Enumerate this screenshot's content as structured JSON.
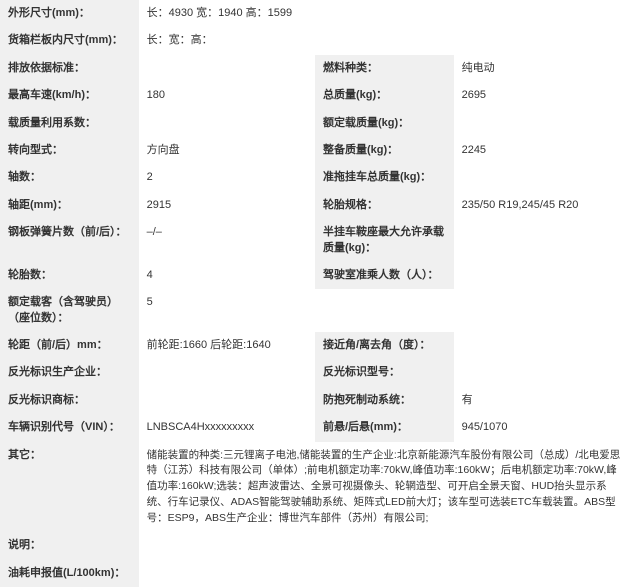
{
  "rows": [
    {
      "type": "full",
      "label": "外形尺寸(mm)：",
      "value": "长：4930 宽：1940 高：1599"
    },
    {
      "type": "full",
      "label": "货箱栏板内尺寸(mm)：",
      "value": "长：宽：高："
    },
    {
      "type": "pair",
      "l1": "排放依据标准：",
      "v1": "",
      "l2": "燃料种类：",
      "v2": "纯电动"
    },
    {
      "type": "pair",
      "l1": "最高车速(km/h)：",
      "v1": "180",
      "l2": "总质量(kg)：",
      "v2": "2695"
    },
    {
      "type": "pair",
      "l1": "载质量利用系数：",
      "v1": "",
      "l2": "额定载质量(kg)：",
      "v2": ""
    },
    {
      "type": "pair",
      "l1": "转向型式：",
      "v1": "方向盘",
      "l2": "整备质量(kg)：",
      "v2": "2245"
    },
    {
      "type": "pair",
      "l1": "轴数：",
      "v1": "2",
      "l2": "准拖挂车总质量(kg)：",
      "v2": ""
    },
    {
      "type": "pair",
      "l1": "轴距(mm)：",
      "v1": "2915",
      "l2": "轮胎规格：",
      "v2": "235/50 R19,245/45 R20"
    },
    {
      "type": "pair",
      "l1": "钢板弹簧片数（前/后）：",
      "v1": "–/–",
      "l2": "半挂车鞍座最大允许承载质量(kg)：",
      "v2": ""
    },
    {
      "type": "pair",
      "l1": "轮胎数：",
      "v1": "4",
      "l2": "驾驶室准乘人数（人）：",
      "v2": ""
    },
    {
      "type": "full",
      "label": "额定载客（含驾驶员）（座位数）：",
      "value": "5"
    },
    {
      "type": "pair",
      "l1": "轮距（前/后）mm：",
      "v1": "前轮距:1660 后轮距:1640",
      "l2": "接近角/离去角（度）：",
      "v2": ""
    },
    {
      "type": "pair",
      "l1": "反光标识生产企业：",
      "v1": "",
      "l2": "反光标识型号：",
      "v2": ""
    },
    {
      "type": "pair",
      "l1": "反光标识商标：",
      "v1": "",
      "l2": "防抱死制动系统：",
      "v2": "有"
    },
    {
      "type": "pair",
      "l1": "车辆识别代号（VIN）：",
      "v1": "LNBSCA4Hxxxxxxxxx",
      "l2": "前悬/后悬(mm)：",
      "v2": "945/1070"
    },
    {
      "type": "full",
      "label": "其它：",
      "value": "储能装置的种类:三元锂离子电池,储能装置的生产企业:北京新能源汽车股份有限公司（总成）/北电爱思特（江苏）科技有限公司（单体）;前电机额定功率:70kW,峰值功率:160kW；后电机额定功率:70kW,峰值功率:160kW;选装：超声波雷达、全景可视摄像头、轮辋造型、可开启全景天窗、HUD抬头显示系统、行车记录仪、ADAS智能驾驶辅助系统、矩阵式LED前大灯；该车型可选装ETC车载装置。ABS型号：ESP9，ABS生产企业：博世汽车部件（苏州）有限公司;",
      "cls": "desc"
    },
    {
      "type": "full",
      "label": "说明：",
      "value": ""
    },
    {
      "type": "full",
      "label": "油耗申报值(L/100km)：",
      "value": ""
    }
  ]
}
